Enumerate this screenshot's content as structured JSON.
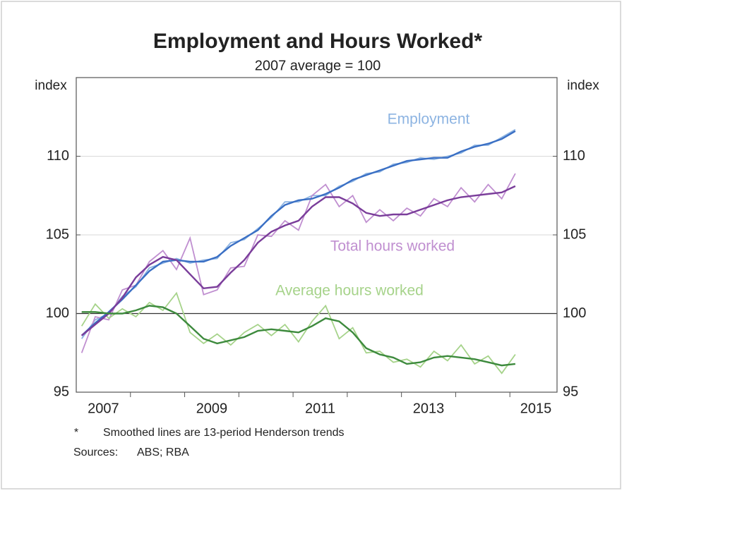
{
  "chart_data": {
    "type": "line",
    "title": "Employment and Hours Worked*",
    "subtitle": "2007 average = 100",
    "y_label": "index",
    "y2_label": "index",
    "footnote_marker": "*",
    "footnote": "Smoothed lines are 13-period Henderson trends",
    "sources_label": "Sources:",
    "sources": "ABS; RBA",
    "xlim": [
      2007,
      2015.87
    ],
    "xticks": [
      2008,
      2009,
      2010,
      2011,
      2012,
      2013,
      2014,
      2015
    ],
    "xtick_labels": [
      2007,
      2009,
      2011,
      2013,
      2015
    ],
    "ylim": [
      95,
      115
    ],
    "yticks": [
      95,
      100,
      105,
      110
    ],
    "y2lim": [
      95,
      115
    ],
    "y2ticks": [
      95,
      100,
      105,
      110
    ],
    "reference_line": 100,
    "grid": true,
    "x": [
      2007.1,
      2007.35,
      2007.6,
      2007.85,
      2008.1,
      2008.35,
      2008.6,
      2008.85,
      2009.1,
      2009.35,
      2009.6,
      2009.85,
      2010.1,
      2010.35,
      2010.6,
      2010.85,
      2011.1,
      2011.35,
      2011.6,
      2011.85,
      2012.1,
      2012.35,
      2012.6,
      2012.85,
      2013.1,
      2013.35,
      2013.6,
      2013.85,
      2014.1,
      2014.35,
      2014.6,
      2014.85,
      2015.1
    ],
    "series": [
      {
        "name": "Employment",
        "color": "#3a6fc4",
        "raw_color": "#8db4e2",
        "values": [
          98.6,
          99.4,
          100.1,
          100.9,
          101.8,
          102.7,
          103.3,
          103.4,
          103.3,
          103.3,
          103.6,
          104.3,
          104.8,
          105.3,
          106.2,
          106.9,
          107.2,
          107.3,
          107.6,
          108.0,
          108.5,
          108.8,
          109.1,
          109.4,
          109.7,
          109.8,
          109.9,
          109.9,
          110.3,
          110.6,
          110.8,
          111.1,
          111.6
        ],
        "raw_values": [
          98.4,
          99.6,
          100.0,
          101.1,
          101.7,
          102.9,
          103.2,
          103.5,
          103.2,
          103.4,
          103.5,
          104.5,
          104.7,
          105.4,
          106.1,
          107.1,
          107.1,
          107.5,
          107.5,
          108.1,
          108.4,
          108.9,
          109.0,
          109.5,
          109.6,
          109.9,
          109.8,
          110.0,
          110.2,
          110.7,
          110.7,
          111.2,
          111.7
        ]
      },
      {
        "name": "Total hours worked",
        "color": "#7a3d9a",
        "raw_color": "#c08fd0",
        "values": [
          98.6,
          99.3,
          100.0,
          101.0,
          102.3,
          103.1,
          103.6,
          103.4,
          102.5,
          101.6,
          101.7,
          102.6,
          103.4,
          104.5,
          105.2,
          105.6,
          105.9,
          106.8,
          107.4,
          107.4,
          107.0,
          106.4,
          106.2,
          106.3,
          106.3,
          106.6,
          106.9,
          107.2,
          107.4,
          107.5,
          107.6,
          107.7,
          108.1
        ],
        "raw_values": [
          97.5,
          99.8,
          99.6,
          101.5,
          101.8,
          103.3,
          104.0,
          102.8,
          104.8,
          101.2,
          101.5,
          102.9,
          103.0,
          105.0,
          104.9,
          105.9,
          105.3,
          107.5,
          108.2,
          106.8,
          107.5,
          105.8,
          106.6,
          105.9,
          106.7,
          106.2,
          107.3,
          106.8,
          108.0,
          107.1,
          108.2,
          107.3,
          108.9
        ]
      },
      {
        "name": "Average hours worked",
        "color": "#3d8a3d",
        "raw_color": "#a6d38a",
        "values": [
          100.1,
          100.1,
          100.0,
          100.0,
          100.2,
          100.5,
          100.4,
          100.0,
          99.2,
          98.4,
          98.1,
          98.3,
          98.5,
          98.9,
          99.0,
          98.9,
          98.8,
          99.2,
          99.7,
          99.5,
          98.8,
          97.8,
          97.4,
          97.2,
          96.8,
          96.9,
          97.2,
          97.3,
          97.2,
          97.1,
          96.9,
          96.7,
          96.8
        ],
        "raw_values": [
          99.2,
          100.6,
          99.7,
          100.3,
          99.8,
          100.7,
          100.2,
          101.3,
          98.8,
          98.1,
          98.7,
          98.0,
          98.8,
          99.3,
          98.6,
          99.3,
          98.2,
          99.5,
          100.5,
          98.4,
          99.1,
          97.5,
          97.6,
          96.9,
          97.1,
          96.6,
          97.6,
          97.0,
          98.0,
          96.8,
          97.3,
          96.2,
          97.4
        ]
      }
    ]
  }
}
